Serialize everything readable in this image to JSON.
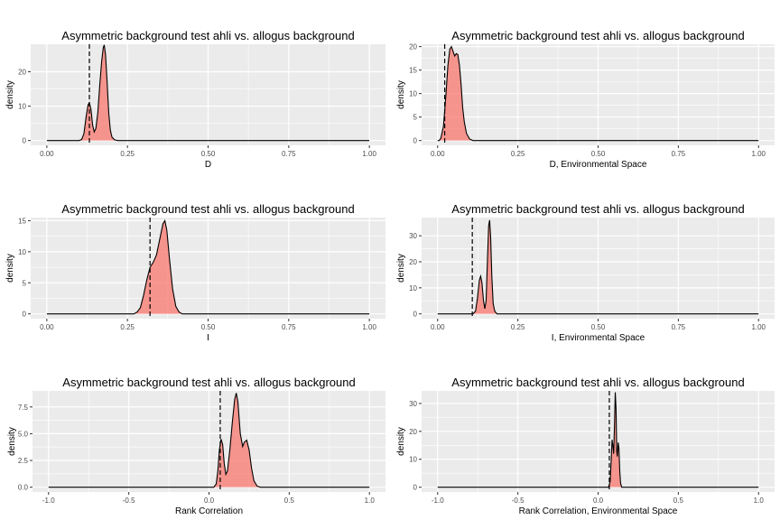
{
  "colors": {
    "panel_bg": "#ebebeb",
    "grid": "#ffffff",
    "fill": "#f8766d",
    "line": "#000000",
    "vline": "#000000"
  },
  "chart_data": [
    {
      "type": "area",
      "title": "Asymmetric background test ahli vs. allogus background",
      "xlabel": "D",
      "ylabel": "density",
      "xlim": [
        0,
        1
      ],
      "ylim": [
        0,
        28
      ],
      "xticks": [
        0,
        0.25,
        0.5,
        0.75,
        1
      ],
      "xtick_labels": [
        "0.00",
        "0.25",
        "0.50",
        "0.75",
        "1.00"
      ],
      "yticks": [
        0,
        10,
        20
      ],
      "ytick_labels": [
        "0",
        "10",
        "20"
      ],
      "observed": 0.132,
      "grid": true,
      "density": [
        [
          0.0,
          0
        ],
        [
          0.1,
          0
        ],
        [
          0.108,
          0.3
        ],
        [
          0.115,
          2
        ],
        [
          0.122,
          7
        ],
        [
          0.128,
          10.5
        ],
        [
          0.132,
          11
        ],
        [
          0.137,
          9
        ],
        [
          0.142,
          4.5
        ],
        [
          0.147,
          2.5
        ],
        [
          0.152,
          3.5
        ],
        [
          0.158,
          8
        ],
        [
          0.164,
          16
        ],
        [
          0.17,
          23
        ],
        [
          0.175,
          27
        ],
        [
          0.178,
          27.8
        ],
        [
          0.182,
          25
        ],
        [
          0.187,
          17
        ],
        [
          0.192,
          8
        ],
        [
          0.197,
          3
        ],
        [
          0.202,
          1
        ],
        [
          0.21,
          0.2
        ],
        [
          0.22,
          0
        ],
        [
          1.0,
          0
        ]
      ]
    },
    {
      "type": "area",
      "title": "Asymmetric background test ahli vs. allogus background",
      "xlabel": "D, Environmental Space",
      "ylabel": "density",
      "xlim": [
        0,
        1
      ],
      "ylim": [
        0,
        20.5
      ],
      "xticks": [
        0,
        0.25,
        0.5,
        0.75,
        1
      ],
      "xtick_labels": [
        "0.00",
        "0.25",
        "0.50",
        "0.75",
        "1.00"
      ],
      "yticks": [
        0,
        5,
        10,
        15,
        20
      ],
      "ytick_labels": [
        "0",
        "5",
        "10",
        "15",
        "20"
      ],
      "observed": 0.022,
      "grid": true,
      "density": [
        [
          0.0,
          0
        ],
        [
          0.005,
          0
        ],
        [
          0.01,
          0.5
        ],
        [
          0.018,
          3
        ],
        [
          0.025,
          9
        ],
        [
          0.032,
          16
        ],
        [
          0.038,
          19.5
        ],
        [
          0.043,
          20
        ],
        [
          0.048,
          19
        ],
        [
          0.053,
          18
        ],
        [
          0.058,
          18.5
        ],
        [
          0.063,
          18.3
        ],
        [
          0.068,
          16
        ],
        [
          0.073,
          12
        ],
        [
          0.078,
          7
        ],
        [
          0.083,
          4
        ],
        [
          0.09,
          1.5
        ],
        [
          0.1,
          0.3
        ],
        [
          0.11,
          0
        ],
        [
          1.0,
          0
        ]
      ]
    },
    {
      "type": "area",
      "title": "Asymmetric background test ahli vs. allogus background",
      "xlabel": "I",
      "ylabel": "density",
      "xlim": [
        0,
        1
      ],
      "ylim": [
        0,
        15.5
      ],
      "xticks": [
        0,
        0.25,
        0.5,
        0.75,
        1
      ],
      "xtick_labels": [
        "0.00",
        "0.25",
        "0.50",
        "0.75",
        "1.00"
      ],
      "yticks": [
        0,
        5,
        10,
        15
      ],
      "ytick_labels": [
        "0",
        "5",
        "10",
        "15"
      ],
      "observed": 0.32,
      "grid": true,
      "density": [
        [
          0.0,
          0
        ],
        [
          0.27,
          0
        ],
        [
          0.28,
          0.3
        ],
        [
          0.29,
          1
        ],
        [
          0.3,
          3
        ],
        [
          0.31,
          5.5
        ],
        [
          0.32,
          7.5
        ],
        [
          0.33,
          8.3
        ],
        [
          0.34,
          9.5
        ],
        [
          0.35,
          12
        ],
        [
          0.36,
          14.5
        ],
        [
          0.366,
          15
        ],
        [
          0.372,
          13.5
        ],
        [
          0.38,
          9
        ],
        [
          0.39,
          4
        ],
        [
          0.4,
          1.2
        ],
        [
          0.41,
          0.3
        ],
        [
          0.42,
          0
        ],
        [
          1.0,
          0
        ]
      ]
    },
    {
      "type": "area",
      "title": "Asymmetric background test ahli vs. allogus background",
      "xlabel": "I, Environmental Space",
      "ylabel": "density",
      "xlim": [
        0,
        1
      ],
      "ylim": [
        0,
        37
      ],
      "xticks": [
        0,
        0.25,
        0.5,
        0.75,
        1
      ],
      "xtick_labels": [
        "0.00",
        "0.25",
        "0.50",
        "0.75",
        "1.00"
      ],
      "yticks": [
        0,
        10,
        20,
        30
      ],
      "ytick_labels": [
        "0",
        "10",
        "20",
        "30"
      ],
      "observed": 0.108,
      "grid": true,
      "density": [
        [
          0.0,
          0
        ],
        [
          0.11,
          0
        ],
        [
          0.118,
          1
        ],
        [
          0.124,
          6
        ],
        [
          0.13,
          13
        ],
        [
          0.134,
          14.5
        ],
        [
          0.138,
          12
        ],
        [
          0.143,
          5
        ],
        [
          0.147,
          2
        ],
        [
          0.151,
          5
        ],
        [
          0.155,
          20
        ],
        [
          0.159,
          34
        ],
        [
          0.162,
          36
        ],
        [
          0.165,
          30
        ],
        [
          0.169,
          14
        ],
        [
          0.173,
          4
        ],
        [
          0.178,
          1
        ],
        [
          0.185,
          0
        ],
        [
          1.0,
          0
        ]
      ]
    },
    {
      "type": "area",
      "title": "Asymmetric background test ahli vs. allogus background",
      "xlabel": "Rank Correlation",
      "ylabel": "density",
      "xlim": [
        -1,
        1
      ],
      "ylim": [
        0,
        9
      ],
      "xticks": [
        -1,
        -0.5,
        0,
        0.5,
        1
      ],
      "xtick_labels": [
        "-1.0",
        "-0.5",
        "0.0",
        "0.5",
        "1.0"
      ],
      "yticks": [
        0,
        2.5,
        5,
        7.5
      ],
      "ytick_labels": [
        "0.0",
        "2.5",
        "5.0",
        "7.5"
      ],
      "observed": 0.07,
      "grid": true,
      "density": [
        [
          -1.0,
          0
        ],
        [
          0.03,
          0
        ],
        [
          0.045,
          0.3
        ],
        [
          0.055,
          1.5
        ],
        [
          0.065,
          3.5
        ],
        [
          0.075,
          4.5
        ],
        [
          0.085,
          4
        ],
        [
          0.095,
          2.2
        ],
        [
          0.105,
          1.2
        ],
        [
          0.115,
          1.5
        ],
        [
          0.13,
          3.5
        ],
        [
          0.145,
          6
        ],
        [
          0.16,
          8.2
        ],
        [
          0.17,
          8.8
        ],
        [
          0.18,
          8
        ],
        [
          0.195,
          5
        ],
        [
          0.21,
          3.8
        ],
        [
          0.22,
          4.2
        ],
        [
          0.235,
          4.4
        ],
        [
          0.25,
          3.5
        ],
        [
          0.265,
          1.8
        ],
        [
          0.28,
          0.6
        ],
        [
          0.3,
          0.1
        ],
        [
          0.32,
          0
        ],
        [
          1.0,
          0
        ]
      ]
    },
    {
      "type": "area",
      "title": "Asymmetric background test ahli vs. allogus background",
      "xlabel": "Rank Correlation, Environmental Space",
      "ylabel": "density",
      "xlim": [
        -1,
        1
      ],
      "ylim": [
        0,
        34.5
      ],
      "xticks": [
        -1,
        -0.5,
        0,
        0.5,
        1
      ],
      "xtick_labels": [
        "-1.0",
        "-0.5",
        "0.0",
        "0.5",
        "1.0"
      ],
      "yticks": [
        0,
        10,
        20,
        30
      ],
      "ytick_labels": [
        "0",
        "10",
        "20",
        "30"
      ],
      "observed": 0.07,
      "grid": true,
      "density": [
        [
          -1.0,
          0
        ],
        [
          0.065,
          0
        ],
        [
          0.075,
          2
        ],
        [
          0.082,
          10
        ],
        [
          0.087,
          17
        ],
        [
          0.092,
          15
        ],
        [
          0.097,
          12
        ],
        [
          0.102,
          22
        ],
        [
          0.107,
          34
        ],
        [
          0.112,
          28
        ],
        [
          0.116,
          13
        ],
        [
          0.12,
          11
        ],
        [
          0.125,
          16
        ],
        [
          0.13,
          14
        ],
        [
          0.135,
          6
        ],
        [
          0.14,
          1.5
        ],
        [
          0.147,
          0
        ],
        [
          1.0,
          0
        ]
      ]
    }
  ]
}
